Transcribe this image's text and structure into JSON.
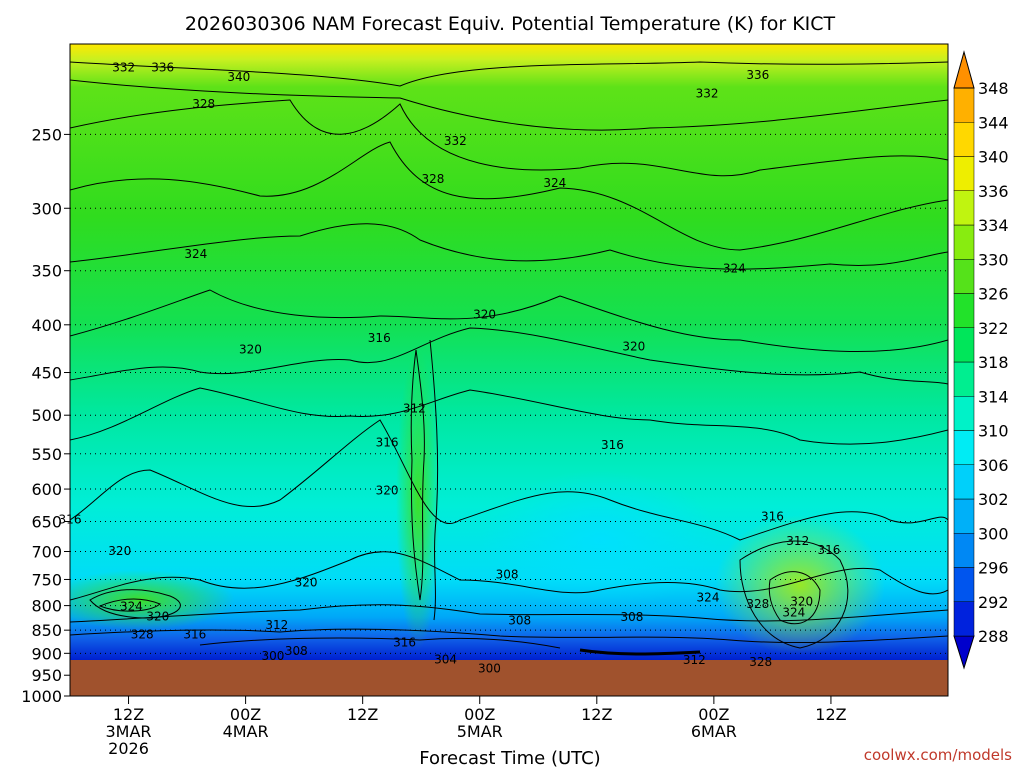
{
  "chart_data": {
    "type": "heatmap",
    "title": "2026030306 NAM Forecast Equiv. Potential Temperature (K) for KICT",
    "xlabel": "Forecast Time (UTC)",
    "ylabel": "",
    "credit": "coolwx.com/models",
    "y_ticks": [
      {
        "value": 250,
        "label": "250"
      },
      {
        "value": 300,
        "label": "300"
      },
      {
        "value": 350,
        "label": "350"
      },
      {
        "value": 400,
        "label": "400"
      },
      {
        "value": 450,
        "label": "450"
      },
      {
        "value": 500,
        "label": "500"
      },
      {
        "value": 550,
        "label": "550"
      },
      {
        "value": 600,
        "label": "600"
      },
      {
        "value": 650,
        "label": "650"
      },
      {
        "value": 700,
        "label": "700"
      },
      {
        "value": 750,
        "label": "750"
      },
      {
        "value": 800,
        "label": "800"
      },
      {
        "value": 850,
        "label": "850"
      },
      {
        "value": 900,
        "label": "900"
      },
      {
        "value": 950,
        "label": "950"
      },
      {
        "value": 1000,
        "label": "1000"
      }
    ],
    "ylim": [
      200,
      1000
    ],
    "xlim_hours": [
      -6,
      84
    ],
    "x_ticks": [
      {
        "hour": 0,
        "lines": [
          "12Z",
          "3MAR",
          "2026"
        ]
      },
      {
        "hour": 12,
        "lines": [
          "00Z",
          "4MAR"
        ]
      },
      {
        "hour": 24,
        "lines": [
          "12Z"
        ]
      },
      {
        "hour": 36,
        "lines": [
          "00Z",
          "5MAR"
        ]
      },
      {
        "hour": 48,
        "lines": [
          "12Z"
        ]
      },
      {
        "hour": 60,
        "lines": [
          "00Z",
          "6MAR"
        ]
      },
      {
        "hour": 72,
        "lines": [
          "12Z"
        ]
      }
    ],
    "colorbar": {
      "levels": [
        "288",
        "292",
        "296",
        "300",
        "302",
        "306",
        "310",
        "314",
        "318",
        "322",
        "326",
        "330",
        "334",
        "336",
        "340",
        "344",
        "348"
      ],
      "colors": [
        "#0000cc",
        "#0022dd",
        "#0055ee",
        "#0088f4",
        "#00b0f8",
        "#00d0fa",
        "#00ecf4",
        "#00f2c8",
        "#00ee90",
        "#00e65a",
        "#22e22a",
        "#55e21a",
        "#88ec10",
        "#c0f410",
        "#eeee00",
        "#ffd800",
        "#ffb000",
        "#ff9000"
      ]
    },
    "contour_labels": [
      {
        "value": "332",
        "hour": -0.5,
        "p": 212
      },
      {
        "value": "336",
        "hour": 3.5,
        "p": 212
      },
      {
        "value": "340",
        "hour": 11.3,
        "p": 217
      },
      {
        "value": "336",
        "hour": 64.5,
        "p": 216
      },
      {
        "value": "332",
        "hour": 59.3,
        "p": 226
      },
      {
        "value": "328",
        "hour": 7.7,
        "p": 232
      },
      {
        "value": "332",
        "hour": 33.5,
        "p": 254
      },
      {
        "value": "328",
        "hour": 31.2,
        "p": 279
      },
      {
        "value": "324",
        "hour": 43.7,
        "p": 282
      },
      {
        "value": "324",
        "hour": 6.9,
        "p": 336
      },
      {
        "value": "324",
        "hour": 62.1,
        "p": 348
      },
      {
        "value": "320",
        "hour": 36.5,
        "p": 390
      },
      {
        "value": "316",
        "hour": 25.7,
        "p": 413
      },
      {
        "value": "320",
        "hour": 12.5,
        "p": 425
      },
      {
        "value": "320",
        "hour": 51.8,
        "p": 422
      },
      {
        "value": "312",
        "hour": 29.3,
        "p": 492
      },
      {
        "value": "316",
        "hour": 26.5,
        "p": 535
      },
      {
        "value": "316",
        "hour": 49.6,
        "p": 538
      },
      {
        "value": "320",
        "hour": 26.5,
        "p": 602
      },
      {
        "value": "316",
        "hour": -6.0,
        "p": 647
      },
      {
        "value": "316",
        "hour": 66.0,
        "p": 642
      },
      {
        "value": "320",
        "hour": -0.9,
        "p": 699
      },
      {
        "value": "312",
        "hour": 68.6,
        "p": 682
      },
      {
        "value": "316",
        "hour": 71.8,
        "p": 697
      },
      {
        "value": "308",
        "hour": 38.8,
        "p": 741
      },
      {
        "value": "320",
        "hour": 18.2,
        "p": 756
      },
      {
        "value": "324",
        "hour": 59.4,
        "p": 784
      },
      {
        "value": "328",
        "hour": 64.5,
        "p": 797
      },
      {
        "value": "320",
        "hour": 69.0,
        "p": 792
      },
      {
        "value": "324",
        "hour": 0.3,
        "p": 802
      },
      {
        "value": "324",
        "hour": 68.2,
        "p": 814
      },
      {
        "value": "320",
        "hour": 3.0,
        "p": 822
      },
      {
        "value": "308",
        "hour": 40.1,
        "p": 830
      },
      {
        "value": "308",
        "hour": 51.6,
        "p": 823
      },
      {
        "value": "312",
        "hour": 15.2,
        "p": 839
      },
      {
        "value": "328",
        "hour": 1.4,
        "p": 859
      },
      {
        "value": "316",
        "hour": 6.8,
        "p": 859
      },
      {
        "value": "316",
        "hour": 28.3,
        "p": 876
      },
      {
        "value": "308",
        "hour": 17.2,
        "p": 895
      },
      {
        "value": "300",
        "hour": 14.8,
        "p": 906
      },
      {
        "value": "304",
        "hour": 32.5,
        "p": 914
      },
      {
        "value": "312",
        "hour": 58.0,
        "p": 915
      },
      {
        "value": "328",
        "hour": 64.8,
        "p": 919
      },
      {
        "value": "300",
        "hour": 37.0,
        "p": 934
      }
    ]
  }
}
